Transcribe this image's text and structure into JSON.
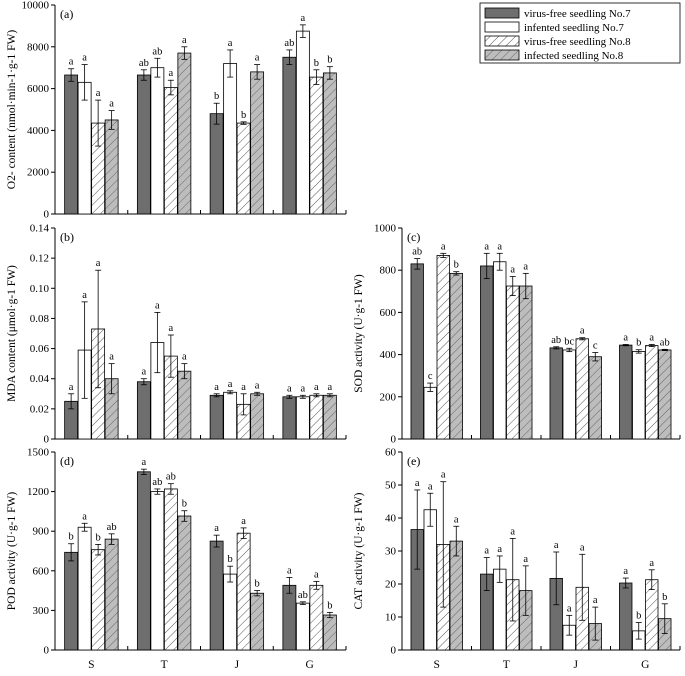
{
  "figure": {
    "categories": [
      "S",
      "T",
      "J",
      "G"
    ],
    "legend": [
      {
        "name": "virus-free seedling No.7",
        "pattern": "dark"
      },
      {
        "name": "infented seedling No.7",
        "pattern": "white"
      },
      {
        "name": "virus-free seedling No.8",
        "pattern": "hatch-light"
      },
      {
        "name": "infected seedling No.8",
        "pattern": "hatch-grey"
      }
    ],
    "colors": {
      "dark": "#6e6e6e",
      "grey": "#bdbdbd",
      "white": "#ffffff",
      "line": "#000000"
    }
  },
  "chart_data": [
    {
      "id": "a",
      "type": "bar",
      "panel_label": "(a)",
      "ylabel": "O2- content (nmol·min-1·g-1 FW)",
      "ylim": [
        0,
        10000
      ],
      "yticks": [
        0,
        2000,
        4000,
        6000,
        8000,
        10000
      ],
      "categories": [
        "S",
        "T",
        "J",
        "G"
      ],
      "series": [
        {
          "name": "virus-free seedling No.7",
          "values": [
            6650,
            6650,
            4800,
            7500
          ],
          "errors": [
            300,
            250,
            500,
            350
          ],
          "letters": [
            "a",
            "ab",
            "b",
            "ab"
          ]
        },
        {
          "name": "infented seedling No.7",
          "values": [
            6300,
            7000,
            7200,
            8750
          ],
          "errors": [
            850,
            450,
            650,
            300
          ],
          "letters": [
            "a",
            "ab",
            "a",
            "a"
          ]
        },
        {
          "name": "virus-free seedling No.8",
          "values": [
            4350,
            6050,
            4350,
            6550
          ],
          "errors": [
            1100,
            350,
            60,
            350
          ],
          "letters": [
            "a",
            "a",
            "b",
            "b"
          ]
        },
        {
          "name": "infected seedling No.8",
          "values": [
            4500,
            7700,
            6800,
            6750
          ],
          "errors": [
            450,
            300,
            350,
            300
          ],
          "letters": [
            "a",
            "a",
            "a",
            "b"
          ]
        }
      ]
    },
    {
      "id": "b",
      "type": "bar",
      "panel_label": "(b)",
      "ylabel": "MDA content (μmol·g-1 FW)",
      "ylim": [
        0,
        0.14
      ],
      "yticks": [
        0,
        0.02,
        0.04,
        0.06,
        0.08,
        0.1,
        0.12,
        0.14
      ],
      "categories": [
        "S",
        "T",
        "J",
        "G"
      ],
      "series": [
        {
          "name": "virus-free seedling No.7",
          "values": [
            0.025,
            0.038,
            0.029,
            0.028
          ],
          "errors": [
            0.005,
            0.002,
            0.001,
            0.001
          ],
          "letters": [
            "a",
            "a",
            "a",
            "a"
          ]
        },
        {
          "name": "infented seedling No.7",
          "values": [
            0.059,
            0.064,
            0.031,
            0.028
          ],
          "errors": [
            0.032,
            0.02,
            0.001,
            0.001
          ],
          "letters": [
            "a",
            "a",
            "a",
            "a"
          ]
        },
        {
          "name": "virus-free seedling No.8",
          "values": [
            0.073,
            0.055,
            0.023,
            0.029
          ],
          "errors": [
            0.039,
            0.014,
            0.007,
            0.001
          ],
          "letters": [
            "a",
            "a",
            "a",
            "a"
          ]
        },
        {
          "name": "infected seedling No.8",
          "values": [
            0.04,
            0.045,
            0.03,
            0.029
          ],
          "errors": [
            0.01,
            0.005,
            0.001,
            0.001
          ],
          "letters": [
            "a",
            "a",
            "a",
            "a"
          ]
        }
      ]
    },
    {
      "id": "c",
      "type": "bar",
      "panel_label": "(c)",
      "ylabel": "SOD activity (U·g-1 FW)",
      "ylim": [
        0,
        1000
      ],
      "yticks": [
        0,
        200,
        400,
        600,
        800,
        1000
      ],
      "categories": [
        "S",
        "T",
        "J",
        "G"
      ],
      "series": [
        {
          "name": "virus-free seedling No.7",
          "values": [
            830,
            820,
            432,
            445
          ],
          "errors": [
            25,
            60,
            5,
            3
          ],
          "letters": [
            "ab",
            "a",
            "ab",
            "a"
          ]
        },
        {
          "name": "infented seedling No.7",
          "values": [
            245,
            840,
            422,
            415
          ],
          "errors": [
            20,
            40,
            8,
            8
          ],
          "letters": [
            "c",
            "a",
            "bc",
            "b"
          ]
        },
        {
          "name": "virus-free seedling No.8",
          "values": [
            870,
            725,
            475,
            443
          ],
          "errors": [
            10,
            45,
            5,
            5
          ],
          "letters": [
            "a",
            "a",
            "a",
            "a"
          ]
        },
        {
          "name": "infected seedling No.8",
          "values": [
            785,
            725,
            390,
            422
          ],
          "errors": [
            8,
            60,
            20,
            3
          ],
          "letters": [
            "b",
            "a",
            "c",
            "ab"
          ]
        }
      ]
    },
    {
      "id": "d",
      "type": "bar",
      "panel_label": "(d)",
      "ylabel": "POD activity (U·g-1 FW)",
      "ylim": [
        0,
        1500
      ],
      "yticks": [
        0,
        300,
        600,
        900,
        1200,
        1500
      ],
      "categories": [
        "S",
        "T",
        "J",
        "G"
      ],
      "series": [
        {
          "name": "virus-free seedling No.7",
          "values": [
            740,
            1350,
            825,
            490
          ],
          "errors": [
            65,
            20,
            45,
            60
          ],
          "letters": [
            "b",
            "a",
            "a",
            "a"
          ]
        },
        {
          "name": "infented seedling No.7",
          "values": [
            930,
            1200,
            575,
            355
          ],
          "errors": [
            30,
            20,
            60,
            10
          ],
          "letters": [
            "a",
            "ab",
            "b",
            "ab"
          ]
        },
        {
          "name": "virus-free seedling No.8",
          "values": [
            760,
            1220,
            885,
            490
          ],
          "errors": [
            40,
            40,
            40,
            30
          ],
          "letters": [
            "b",
            "ab",
            "a",
            "a"
          ]
        },
        {
          "name": "infected seedling No.8",
          "values": [
            840,
            1015,
            430,
            265
          ],
          "errors": [
            40,
            40,
            20,
            20
          ],
          "letters": [
            "ab",
            "b",
            "b",
            "b"
          ]
        }
      ]
    },
    {
      "id": "e",
      "type": "bar",
      "panel_label": "(e)",
      "ylabel": "CAT activity (U·g-1 FW)",
      "ylim": [
        0,
        60
      ],
      "yticks": [
        0,
        10,
        20,
        30,
        40,
        50,
        60
      ],
      "categories": [
        "S",
        "T",
        "J",
        "G"
      ],
      "series": [
        {
          "name": "virus-free seedling No.7",
          "values": [
            36.5,
            23.0,
            21.7,
            20.3
          ],
          "errors": [
            12,
            5,
            8,
            1.5
          ],
          "letters": [
            "a",
            "a",
            "a",
            "a"
          ]
        },
        {
          "name": "infented seedling No.7",
          "values": [
            42.5,
            24.5,
            7.5,
            5.8
          ],
          "errors": [
            5,
            4,
            3,
            2.5
          ],
          "letters": [
            "a",
            "a",
            "a",
            "b"
          ]
        },
        {
          "name": "virus-free seedling No.8",
          "values": [
            32.0,
            21.3,
            19.0,
            21.3
          ],
          "errors": [
            19,
            12.5,
            10,
            3
          ],
          "letters": [
            "a",
            "a",
            "a",
            "a"
          ]
        },
        {
          "name": "infected seedling No.8",
          "values": [
            33.0,
            18.0,
            8.0,
            9.5
          ],
          "errors": [
            4.5,
            7.5,
            5,
            4.5
          ],
          "letters": [
            "a",
            "a",
            "a",
            "b"
          ]
        }
      ]
    }
  ]
}
